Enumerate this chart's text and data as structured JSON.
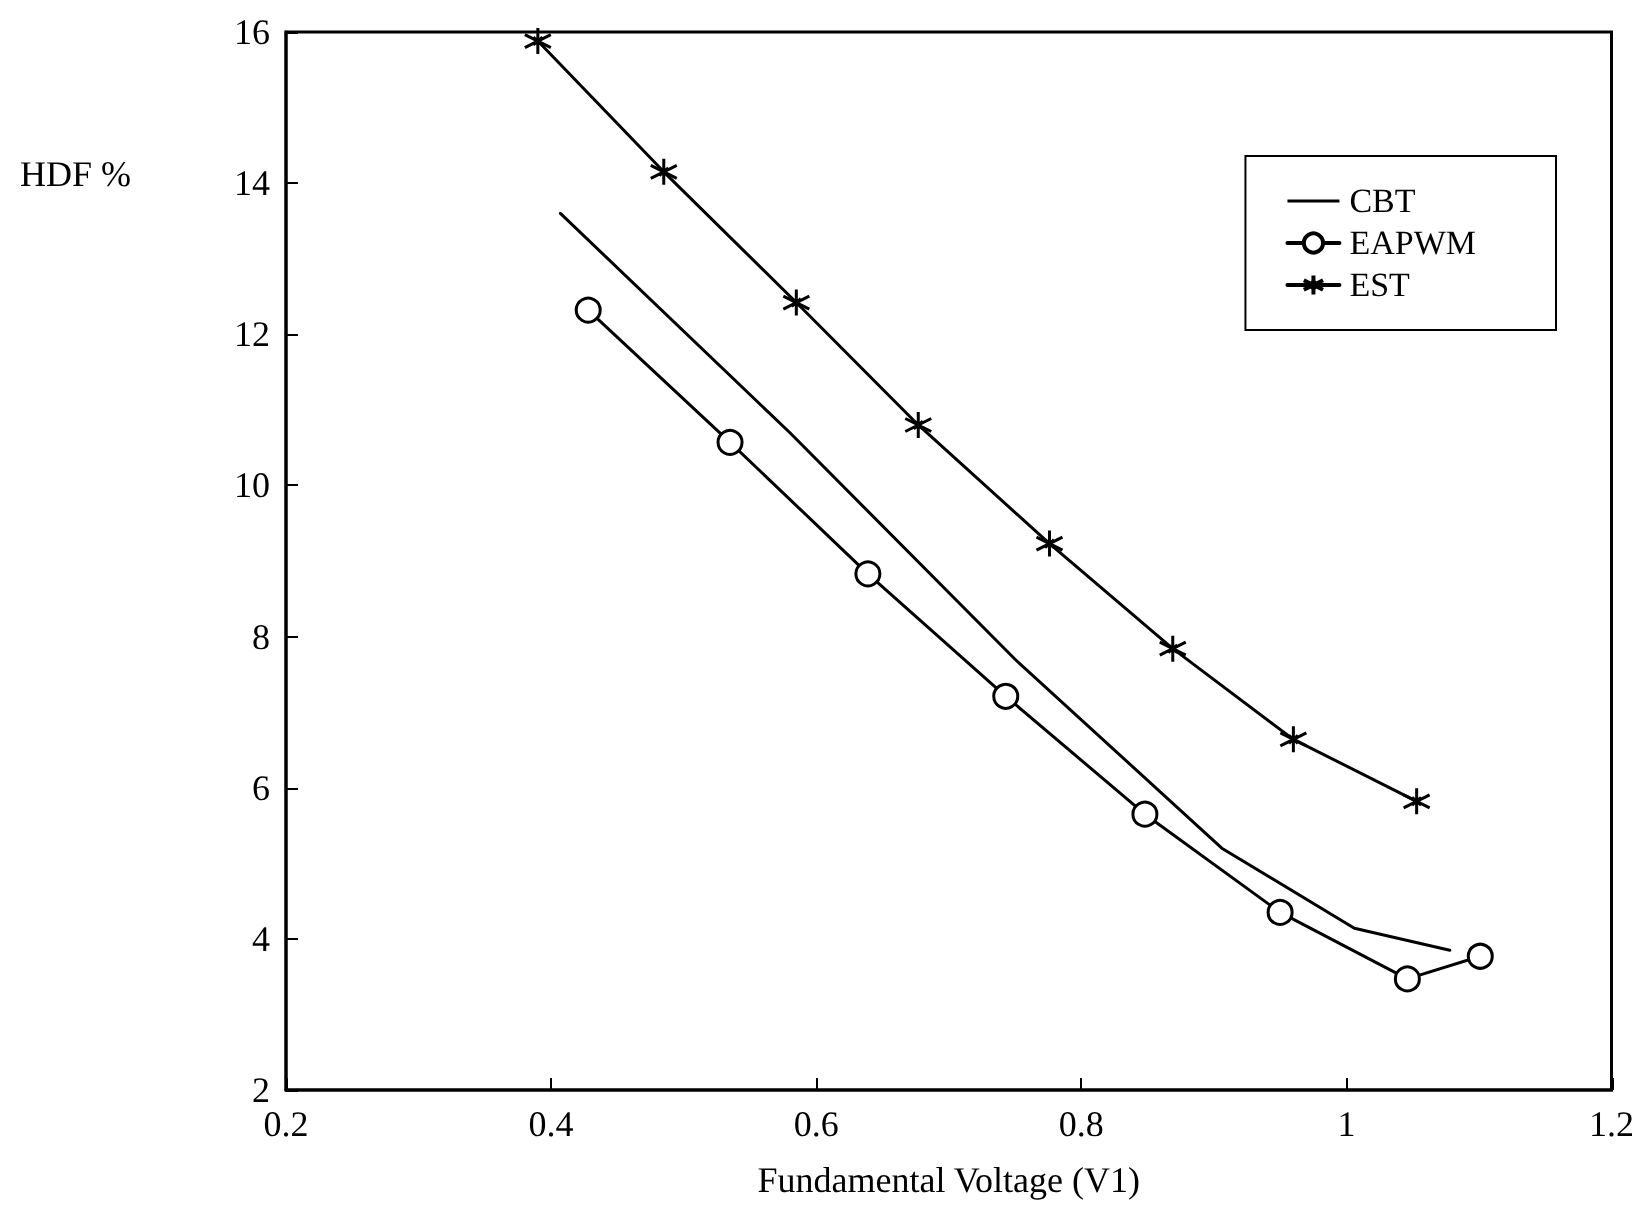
{
  "chart_data": {
    "type": "line",
    "xlabel": "Fundamental Voltage (V1)",
    "ylabel": "HDF %",
    "xlim": [
      0.2,
      1.2
    ],
    "xticks": [
      0.2,
      0.4,
      0.6,
      0.8,
      1,
      1.2
    ],
    "ylim": [
      2,
      16
    ],
    "yticks": [
      2,
      4,
      6,
      8,
      10,
      12,
      14,
      16
    ],
    "grid": false,
    "legend": "top right",
    "line_style": "solid",
    "series": [
      {
        "name": "CBT",
        "color": "#000000",
        "marker": "none",
        "x": [
          0.407,
          0.58,
          0.75,
          0.906,
          1.006,
          1.078
        ],
        "values": [
          13.6,
          10.7,
          7.7,
          5.2,
          4.14,
          3.85
        ]
      },
      {
        "name": "EAPWM",
        "color": "#000000",
        "marker": "circle",
        "x": [
          0.428,
          0.535,
          0.639,
          0.743,
          0.848,
          0.95,
          1.046,
          1.101
        ],
        "values": [
          12.32,
          10.57,
          8.83,
          7.21,
          5.65,
          4.35,
          3.47,
          3.77
        ]
      },
      {
        "name": "EST",
        "color": "#000000",
        "marker": "cross",
        "x": [
          0.39,
          0.485,
          0.585,
          0.677,
          0.776,
          0.869,
          0.96,
          1.053
        ],
        "values": [
          15.88,
          14.15,
          12.42,
          10.8,
          9.23,
          7.84,
          6.64,
          5.82
        ]
      }
    ]
  }
}
